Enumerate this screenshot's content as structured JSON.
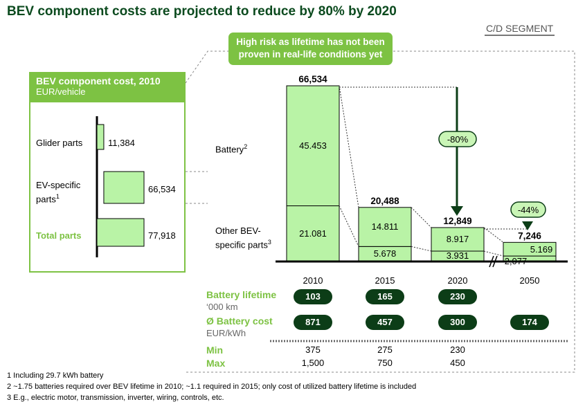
{
  "title": "BEV component costs are projected to reduce by 80% by 2020",
  "segment_label": "C/D SEGMENT",
  "callout_line1": "High risk as lifetime has not been",
  "callout_line2": "proven in real-life conditions yet",
  "left_panel": {
    "title": "BEV component cost, 2010",
    "unit": "EUR/vehicle",
    "rows": [
      {
        "label": "Glider parts",
        "sup": "",
        "value_label": "11,384"
      },
      {
        "label": "EV-specific",
        "label2": "parts",
        "sup": "1",
        "value_label": "66,534"
      },
      {
        "label": "Total parts",
        "sup": "",
        "value_label": "77,918"
      }
    ]
  },
  "series_labels": {
    "battery": "Battery",
    "battery_sup": "2",
    "other_line1": "Other BEV-",
    "other_line2": "specific parts",
    "other_sup": "3"
  },
  "reduction_80": "-80%",
  "reduction_44": "-44%",
  "table": {
    "lifetime_label": "Battery lifetime",
    "lifetime_unit": "‘000 km",
    "cost_label": "Ø Battery cost",
    "cost_unit": "EUR/kWh",
    "min_label": "Min",
    "max_label": "Max",
    "lifetime_values": [
      "103",
      "165",
      "230",
      ""
    ],
    "cost_values": [
      "871",
      "457",
      "300",
      "174"
    ],
    "min_values": [
      "375",
      "275",
      "230",
      ""
    ],
    "max_values": [
      "1,500",
      "750",
      "450",
      ""
    ]
  },
  "footnotes": [
    "1 Including 29.7 kWh battery",
    "2 ~1.75 batteries required over BEV lifetime in 2010; ~1.1 required in 2015; only cost of utilized battery lifetime is included",
    "3 E.g., electric motor, transmission, inverter, wiring, controls, etc."
  ],
  "colors": {
    "bar_fill": "#b9f3a6",
    "accent": "#7dc243",
    "dark": "#0c3d17",
    "title": "#0b4a1e"
  },
  "chart_data": [
    {
      "type": "bar",
      "title": "BEV component cost, 2010",
      "ylabel": "EUR/vehicle",
      "categories": [
        "Glider parts",
        "EV-specific parts",
        "Total parts"
      ],
      "values": [
        11384,
        66534,
        77918
      ],
      "value_labels": [
        "11,384",
        "66,534",
        "77,918"
      ],
      "orientation": "horizontal"
    },
    {
      "type": "bar",
      "stacked": true,
      "categories": [
        "2010",
        "2015",
        "2020",
        "2050"
      ],
      "series": [
        {
          "name": "Other BEV-specific parts",
          "values": [
            21081,
            5678,
            3931,
            2077
          ],
          "value_labels": [
            "21.081",
            "5.678",
            "3.931",
            "2,077"
          ]
        },
        {
          "name": "Battery",
          "values": [
            45453,
            14811,
            8917,
            5169
          ],
          "value_labels": [
            "45.453",
            "14.811",
            "8.917",
            "5.169"
          ]
        }
      ],
      "totals": [
        66534,
        20488,
        12849,
        7246
      ],
      "total_labels": [
        "66,534",
        "20,488",
        "12,849",
        "7,246"
      ],
      "annotations": [
        "-80%",
        "-44%"
      ],
      "ylim": [
        0,
        66534
      ]
    }
  ]
}
